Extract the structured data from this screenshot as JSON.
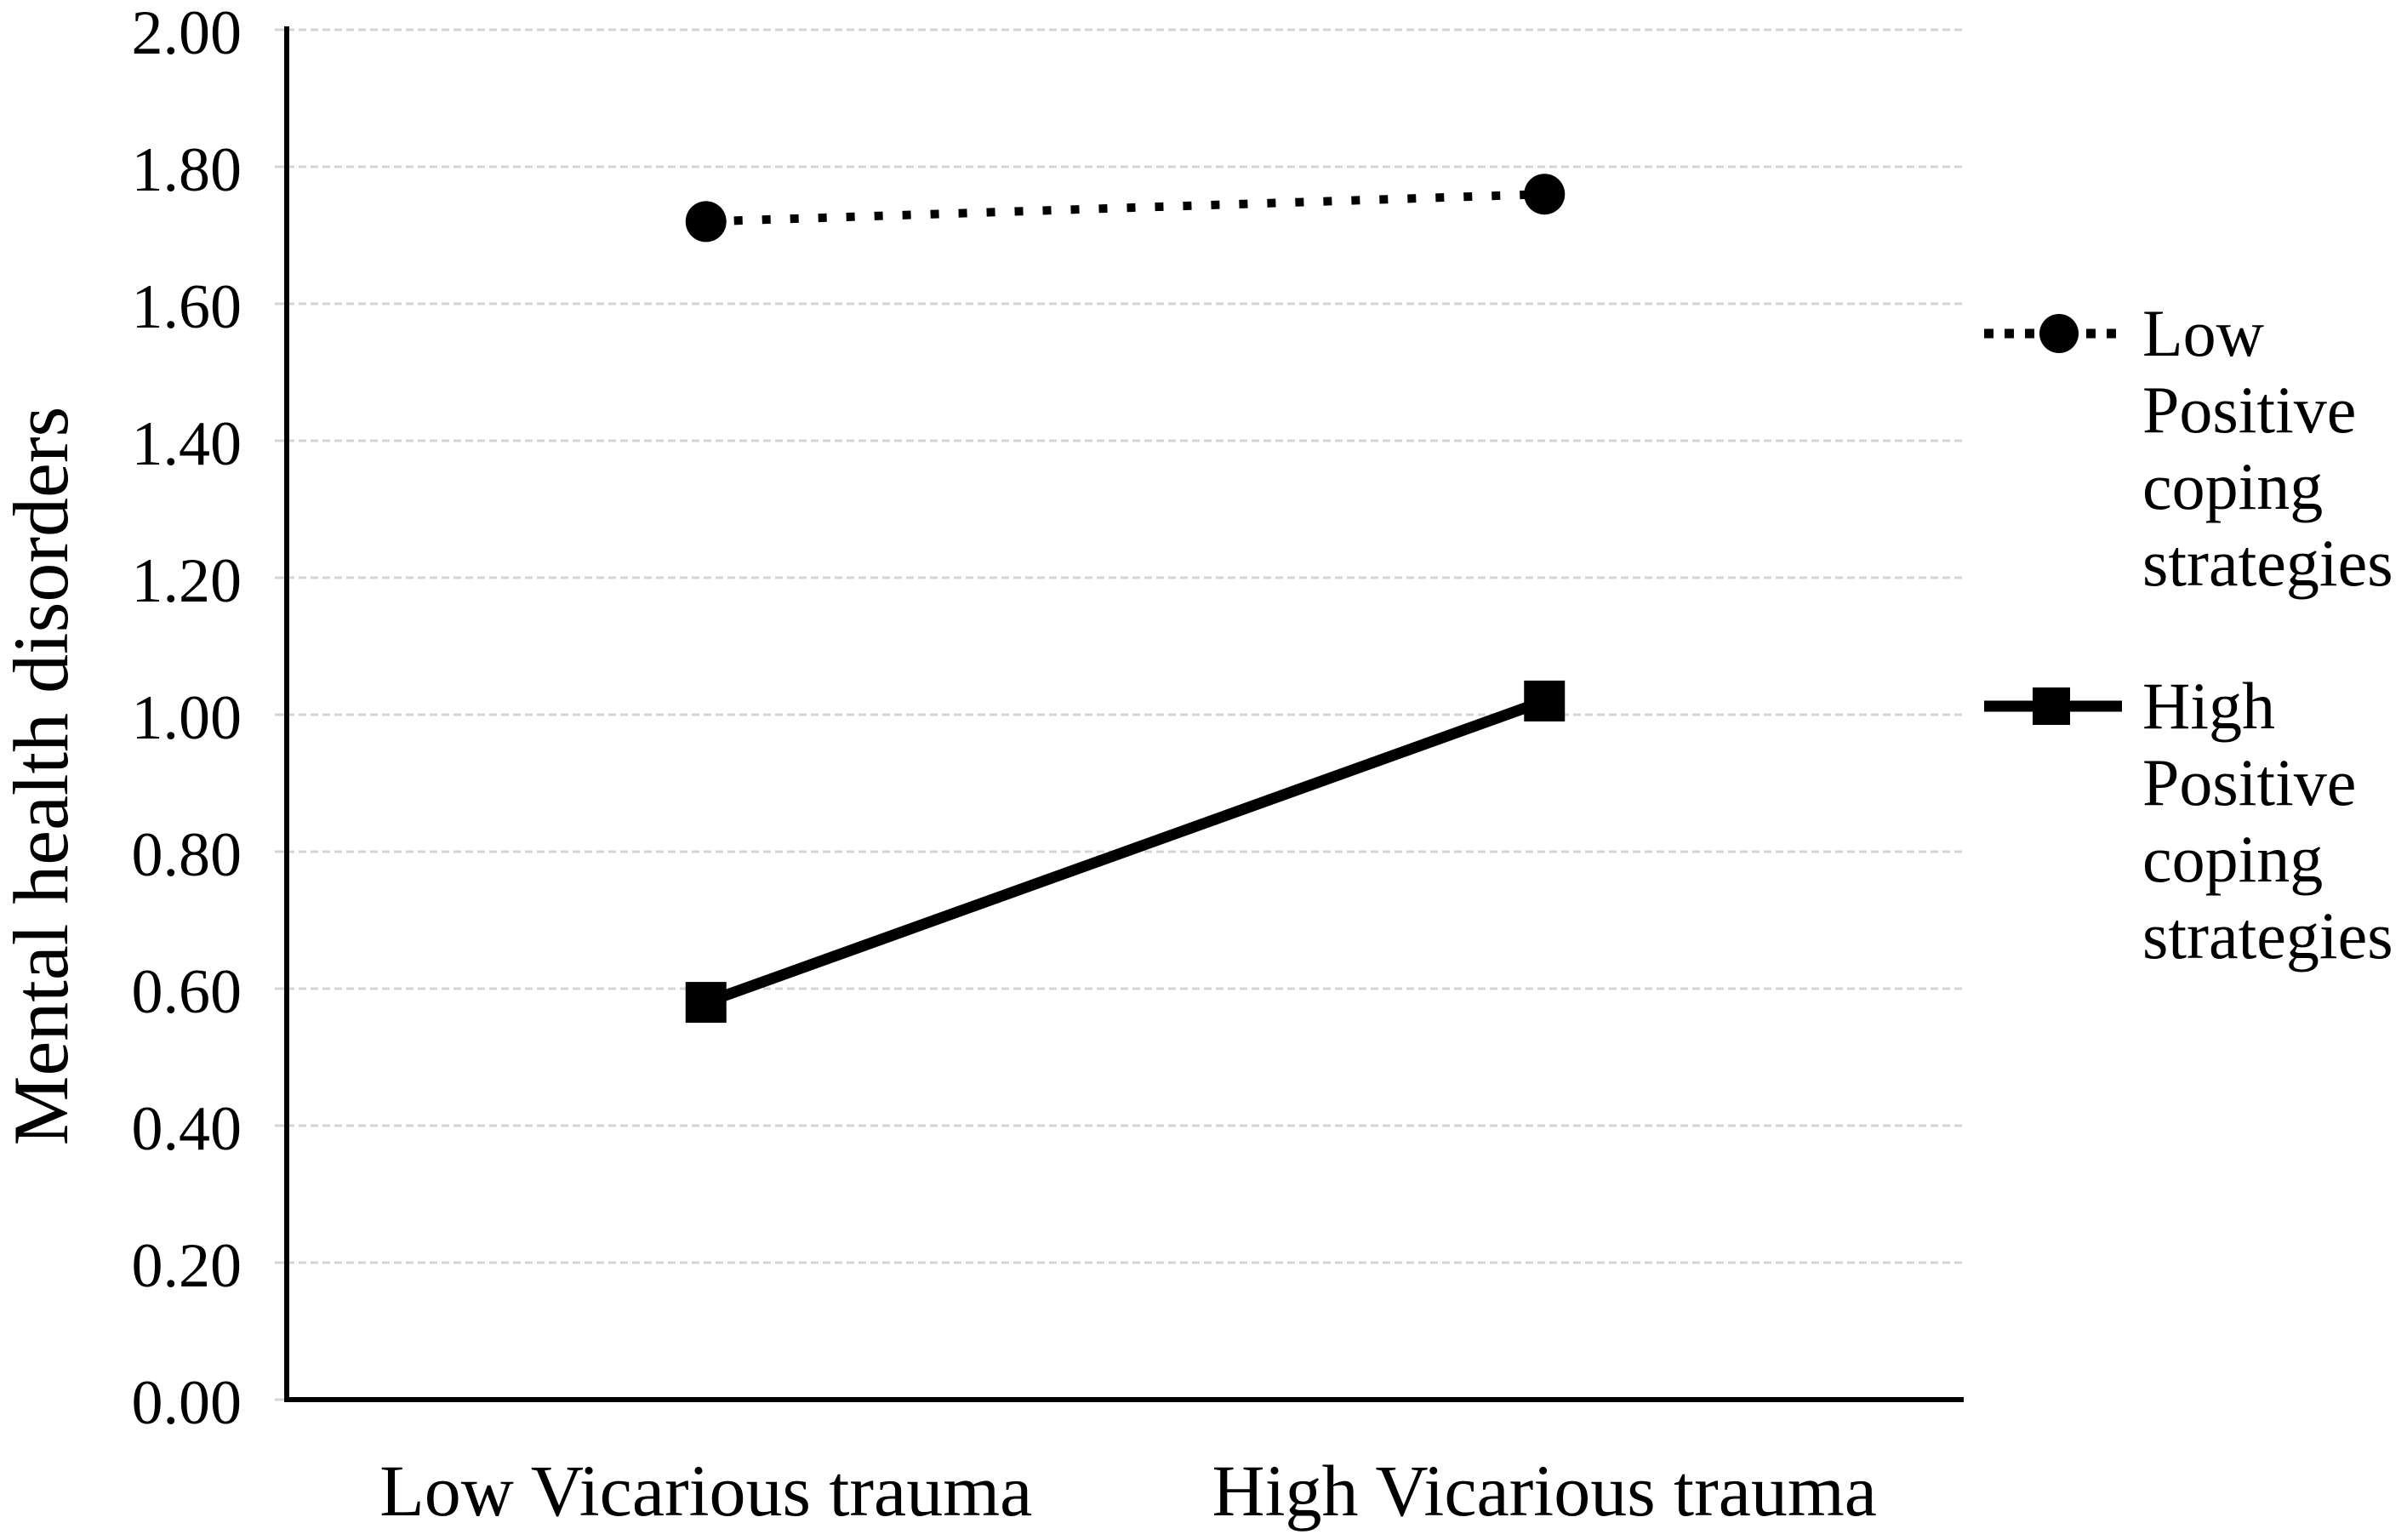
{
  "chart_data": {
    "type": "line",
    "title": "",
    "categories": [
      "Low Vicarious trauma",
      "High Vicarious trauma"
    ],
    "series": [
      {
        "name": "Low Positive coping strategies",
        "values": [
          1.72,
          1.76
        ],
        "line_style": "dotted",
        "marker": "circle"
      },
      {
        "name": "High Positive coping strategies",
        "values": [
          0.58,
          1.02
        ],
        "line_style": "solid",
        "marker": "square"
      }
    ],
    "xlabel": "",
    "ylabel": "Mental health disorders",
    "ylim": [
      0.0,
      2.0
    ],
    "y_ticks": [
      "0.00",
      "0.20",
      "0.40",
      "0.60",
      "0.80",
      "1.00",
      "1.20",
      "1.40",
      "1.60",
      "1.80",
      "2.00"
    ],
    "grid": true,
    "legend_position": "right",
    "colors": {
      "series": "#000000",
      "axis": "#000000",
      "gridline": "#d4d4d4",
      "text": "#000000",
      "background": "#ffffff"
    }
  }
}
